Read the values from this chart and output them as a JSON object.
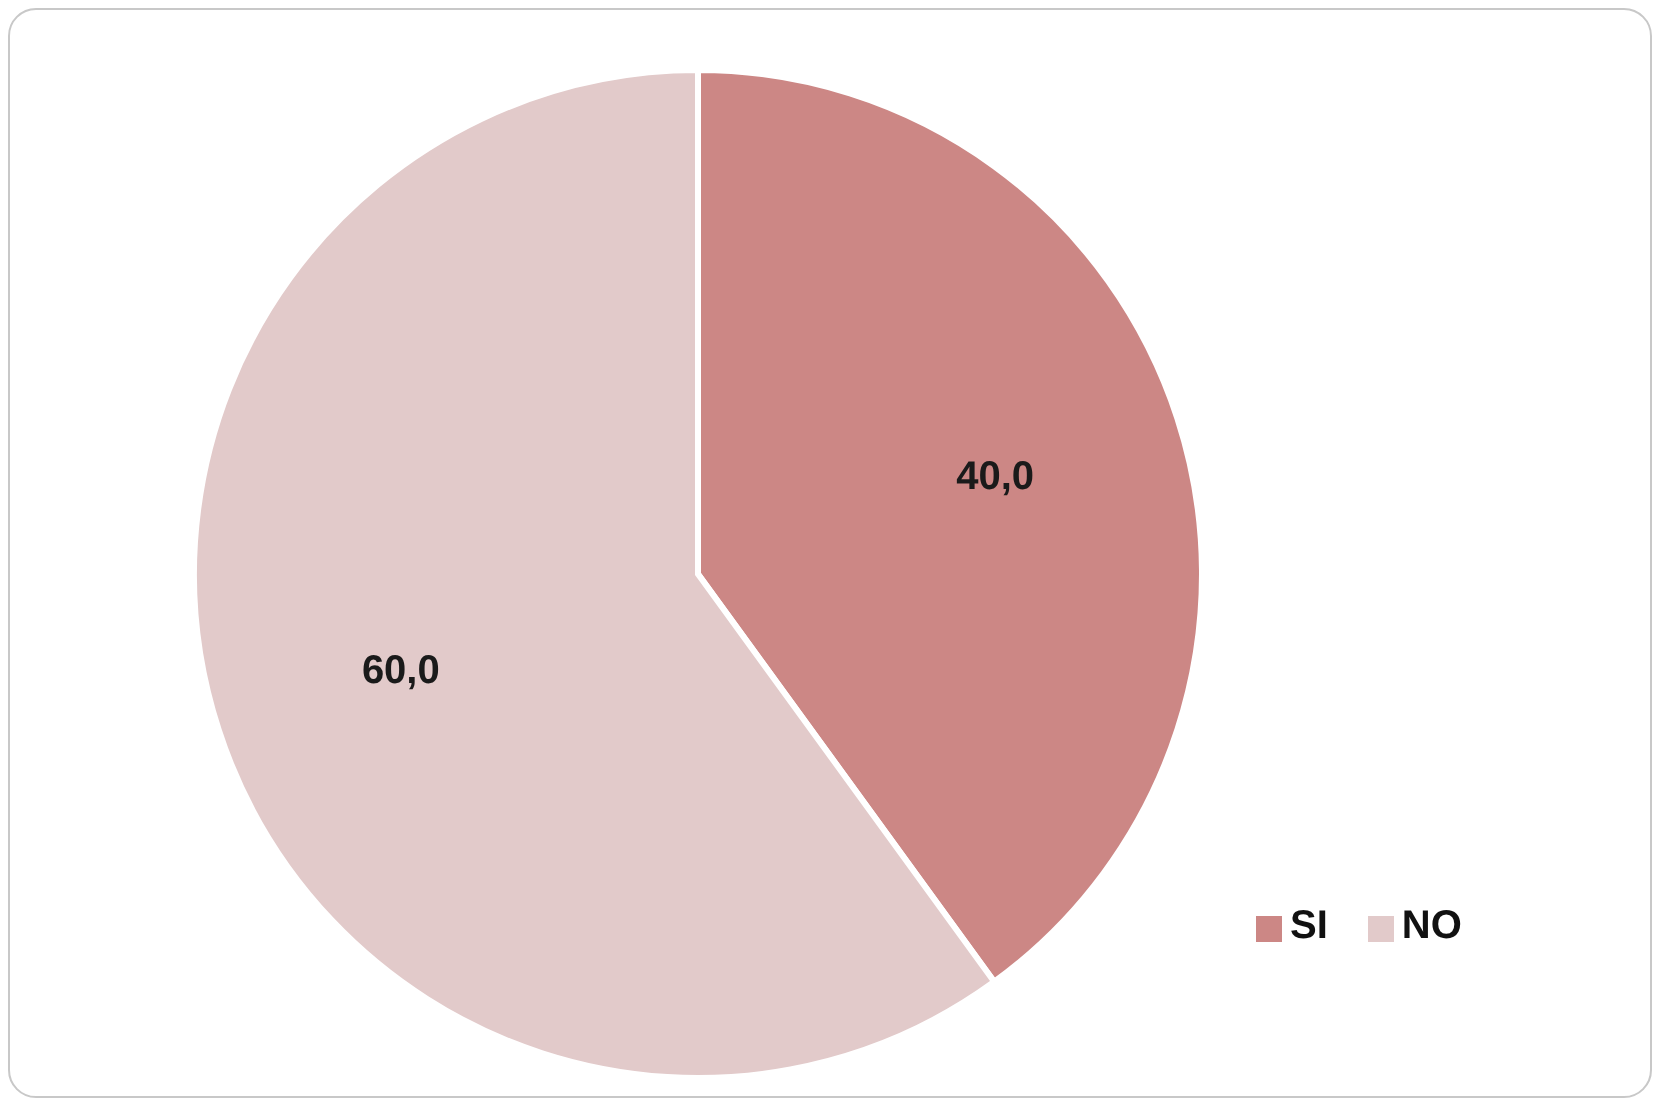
{
  "chart_data": {
    "type": "pie",
    "categories": [
      "SI",
      "NO"
    ],
    "values": [
      40,
      60
    ],
    "colors": [
      "#cc8785",
      "#e2caca"
    ],
    "value_labels": [
      "40,0",
      "60,0"
    ],
    "legend": "bottom right"
  }
}
